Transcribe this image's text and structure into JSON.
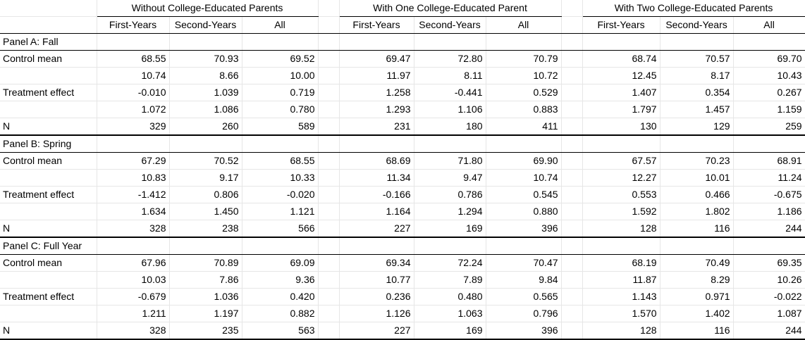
{
  "groups": [
    "Without College-Educated Parents",
    "With One College-Educated Parent",
    "With Two College-Educated Parents"
  ],
  "subheaders": [
    "First-Years",
    "Second-Years",
    "All"
  ],
  "panels": [
    {
      "title": "Panel A: Fall",
      "rows": [
        {
          "label": "Control mean",
          "values": [
            "68.55",
            "70.93",
            "69.52",
            "69.47",
            "72.80",
            "70.79",
            "68.74",
            "70.57",
            "69.70"
          ]
        },
        {
          "label": "",
          "values": [
            "10.74",
            "8.66",
            "10.00",
            "11.97",
            "8.11",
            "10.72",
            "12.45",
            "8.17",
            "10.43"
          ]
        },
        {
          "label": "Treatment effect",
          "values": [
            "-0.010",
            "1.039",
            "0.719",
            "1.258",
            "-0.441",
            "0.529",
            "1.407",
            "0.354",
            "0.267"
          ]
        },
        {
          "label": "",
          "values": [
            "1.072",
            "1.086",
            "0.780",
            "1.293",
            "1.106",
            "0.883",
            "1.797",
            "1.457",
            "1.159"
          ]
        },
        {
          "label": "N",
          "values": [
            "329",
            "260",
            "589",
            "231",
            "180",
            "411",
            "130",
            "129",
            "259"
          ]
        }
      ]
    },
    {
      "title": "Panel B: Spring",
      "rows": [
        {
          "label": "Control mean",
          "values": [
            "67.29",
            "70.52",
            "68.55",
            "68.69",
            "71.80",
            "69.90",
            "67.57",
            "70.23",
            "68.91"
          ]
        },
        {
          "label": "",
          "values": [
            "10.83",
            "9.17",
            "10.33",
            "11.34",
            "9.47",
            "10.74",
            "12.27",
            "10.01",
            "11.24"
          ]
        },
        {
          "label": "Treatment effect",
          "values": [
            "-1.412",
            "0.806",
            "-0.020",
            "-0.166",
            "0.786",
            "0.545",
            "0.553",
            "0.466",
            "-0.675"
          ]
        },
        {
          "label": "",
          "values": [
            "1.634",
            "1.450",
            "1.121",
            "1.164",
            "1.294",
            "0.880",
            "1.592",
            "1.802",
            "1.186"
          ]
        },
        {
          "label": "N",
          "values": [
            "328",
            "238",
            "566",
            "227",
            "169",
            "396",
            "128",
            "116",
            "244"
          ]
        }
      ]
    },
    {
      "title": "Panel C: Full Year",
      "rows": [
        {
          "label": "Control mean",
          "values": [
            "67.96",
            "70.89",
            "69.09",
            "69.34",
            "72.24",
            "70.47",
            "68.19",
            "70.49",
            "69.35"
          ]
        },
        {
          "label": "",
          "values": [
            "10.03",
            "7.86",
            "9.36",
            "10.77",
            "7.89",
            "9.84",
            "11.87",
            "8.29",
            "10.26"
          ]
        },
        {
          "label": "Treatment effect",
          "values": [
            "-0.679",
            "1.036",
            "0.420",
            "0.236",
            "0.480",
            "0.565",
            "1.143",
            "0.971",
            "-0.022"
          ]
        },
        {
          "label": "",
          "values": [
            "1.211",
            "1.197",
            "0.882",
            "1.126",
            "1.063",
            "0.796",
            "1.570",
            "1.402",
            "1.087"
          ]
        },
        {
          "label": "N",
          "values": [
            "328",
            "235",
            "563",
            "227",
            "169",
            "396",
            "128",
            "116",
            "244"
          ]
        }
      ]
    }
  ]
}
